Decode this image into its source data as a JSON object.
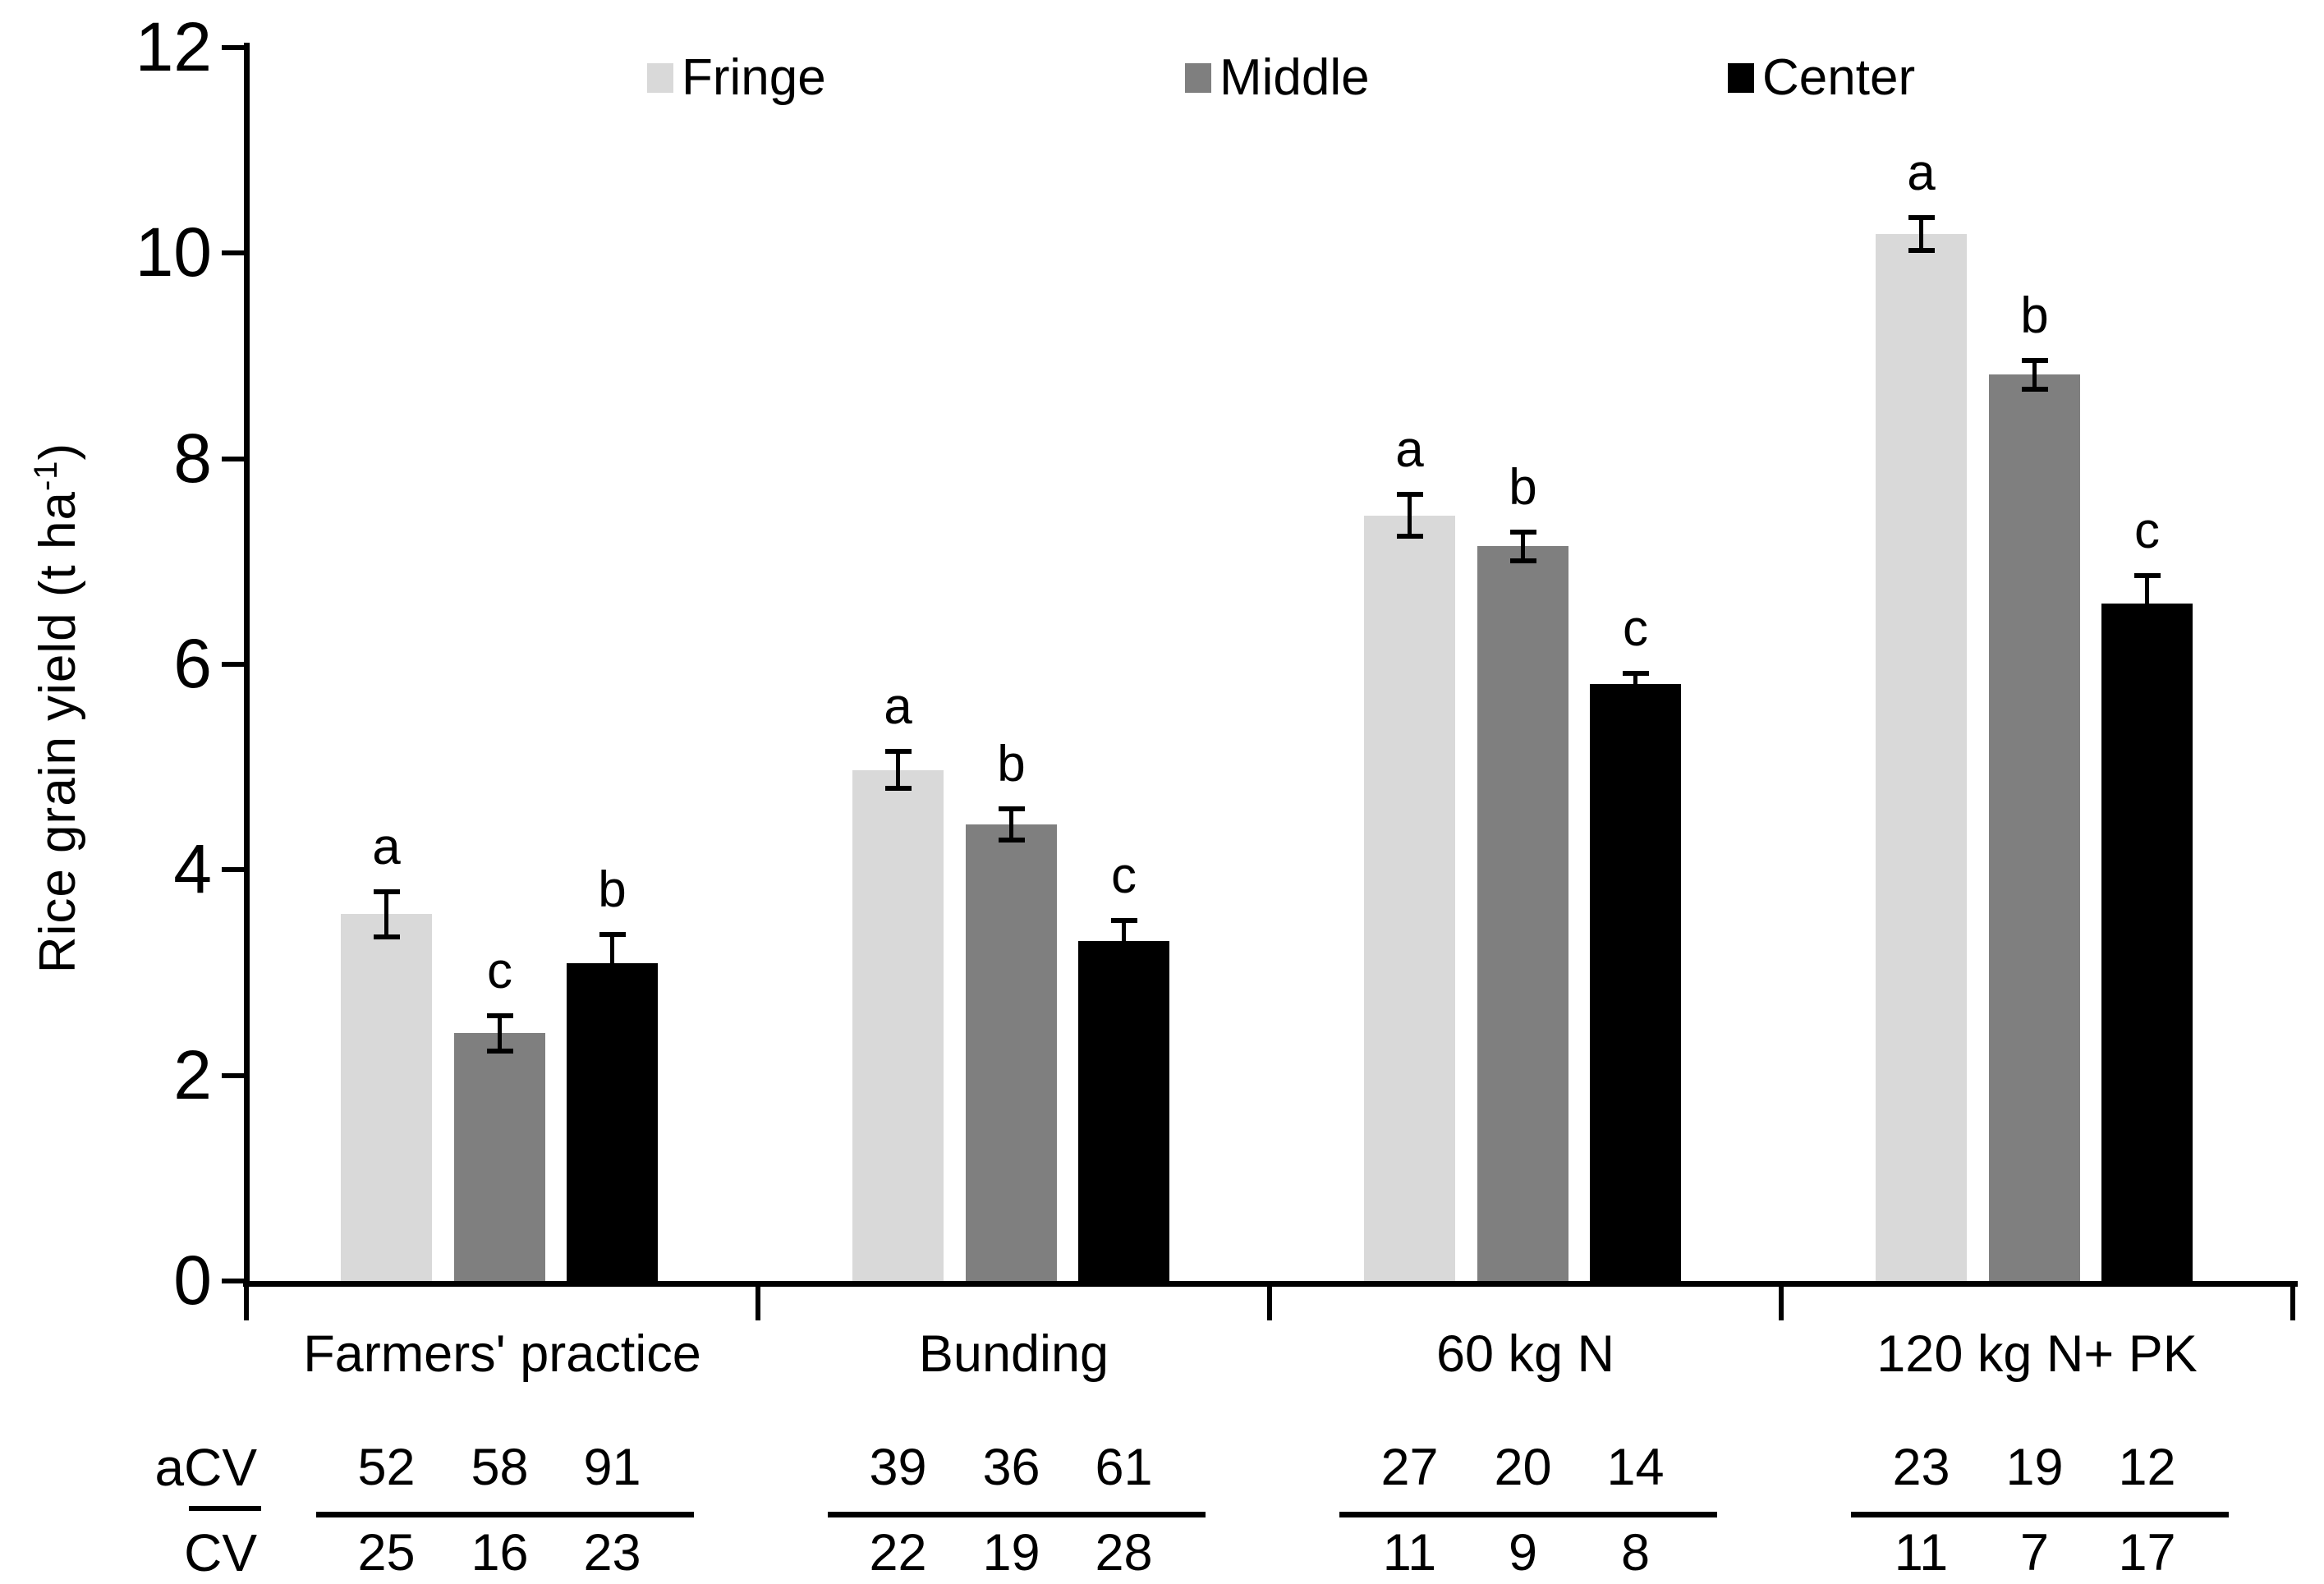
{
  "figure": {
    "background": "#ffffff"
  },
  "chart_data": {
    "type": "bar",
    "title": "",
    "ylabel": "Rice grain yield (t ha⁻¹)",
    "ylabel_parts": {
      "base": "Rice grain yield  (t ha",
      "sup": "-1",
      "close": ")"
    },
    "ylim": [
      0,
      12
    ],
    "yticks": [
      0,
      2,
      4,
      6,
      8,
      10,
      12
    ],
    "grid": false,
    "legend_position": "top",
    "categories": [
      "Farmers' practice",
      "Bunding",
      "60 kg N",
      "120 kg N+ PK"
    ],
    "series": [
      {
        "name": "Fringe",
        "color": "#d9d9d9",
        "values": [
          3.57,
          4.97,
          7.45,
          10.19
        ],
        "errors": [
          0.22,
          0.18,
          0.2,
          0.16
        ],
        "letters": [
          "a",
          "a",
          "a",
          "a"
        ]
      },
      {
        "name": "Middle",
        "color": "#7f7f7f",
        "values": [
          2.41,
          4.44,
          7.15,
          8.82
        ],
        "errors": [
          0.17,
          0.15,
          0.14,
          0.14
        ],
        "letters": [
          "c",
          "b",
          "b",
          "b"
        ]
      },
      {
        "name": "Center",
        "color": "#000000",
        "values": [
          3.09,
          3.31,
          5.81,
          6.59
        ],
        "errors": [
          0.28,
          0.2,
          0.1,
          0.27
        ],
        "letters": [
          "b",
          "c",
          "c",
          "c"
        ]
      }
    ],
    "table": {
      "row_labels": [
        "aCV",
        "CV"
      ],
      "aCV": [
        [
          52,
          58,
          91
        ],
        [
          39,
          36,
          61
        ],
        [
          27,
          20,
          14
        ],
        [
          23,
          19,
          12
        ]
      ],
      "CV": [
        [
          25,
          16,
          23
        ],
        [
          22,
          19,
          28
        ],
        [
          11,
          9,
          8
        ],
        [
          11,
          7,
          17
        ]
      ]
    }
  }
}
